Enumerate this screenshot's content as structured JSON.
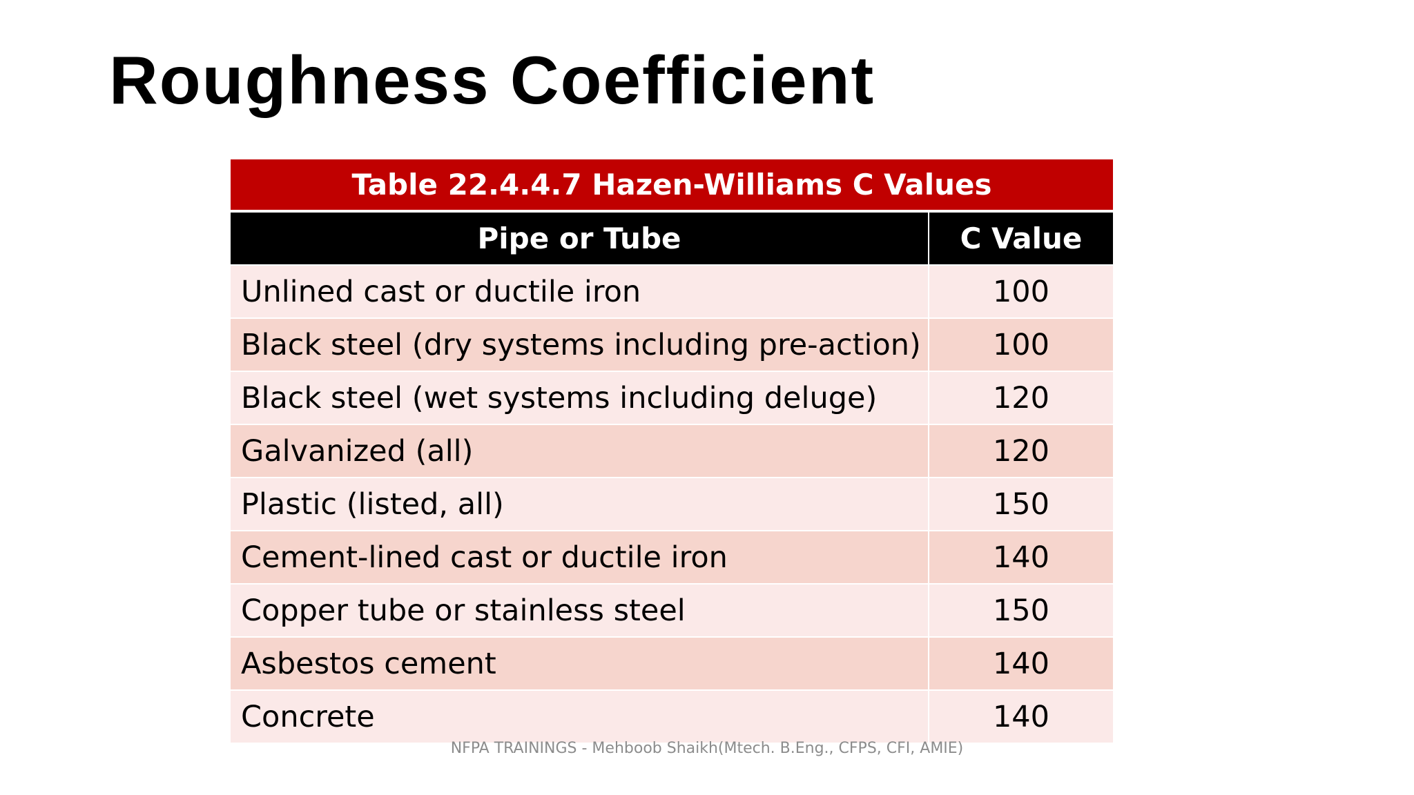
{
  "slide": {
    "title": "Roughness Coefficient"
  },
  "table": {
    "caption": "Table 22.4.4.7 Hazen-Williams C Values",
    "headers": [
      "Pipe or Tube",
      "C Value"
    ],
    "rows": [
      {
        "pipe": "Unlined cast or ductile iron",
        "c_value": "100"
      },
      {
        "pipe": "Black steel (dry systems including pre-action)",
        "c_value": "100"
      },
      {
        "pipe": "Black steel (wet systems including deluge)",
        "c_value": "120"
      },
      {
        "pipe": "Galvanized (all)",
        "c_value": "120"
      },
      {
        "pipe": "Plastic (listed, all)",
        "c_value": "150"
      },
      {
        "pipe": "Cement-lined cast or ductile iron",
        "c_value": "140"
      },
      {
        "pipe": "Copper tube or stainless steel",
        "c_value": "150"
      },
      {
        "pipe": "Asbestos cement",
        "c_value": "140"
      },
      {
        "pipe": "Concrete",
        "c_value": "140"
      }
    ]
  },
  "footer": {
    "text": "NFPA TRAININGS - Mehboob Shaikh(Mtech. B.Eng., CFPS, CFI, AMIE)"
  },
  "colors": {
    "caption_bg": "#c00000",
    "header_bg": "#000000",
    "row_light": "#fbe9e8",
    "row_dark": "#f6d5cd"
  }
}
